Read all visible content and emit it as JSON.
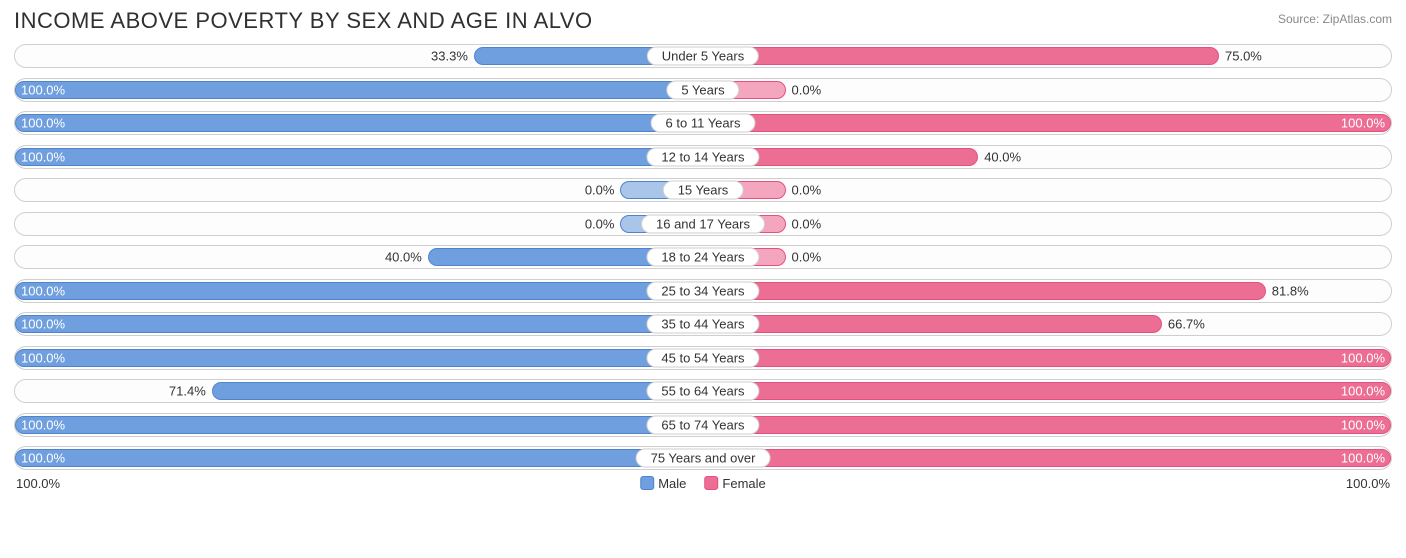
{
  "title": "INCOME ABOVE POVERTY BY SEX AND AGE IN ALVO",
  "source": "Source: ZipAtlas.com",
  "colors": {
    "male_fill": "#6f9fde",
    "male_border": "#4f84cc",
    "male_fill_light": "#a9c5ea",
    "female_fill": "#ec6e95",
    "female_border": "#e4507f",
    "female_fill_light": "#f4a6bf",
    "row_border": "#cfcfcf",
    "text": "#333333"
  },
  "min_bar_pct": 12,
  "rows": [
    {
      "age": "Under 5 Years",
      "male": 33.3,
      "male_label": "33.3%",
      "female": 75.0,
      "female_label": "75.0%"
    },
    {
      "age": "5 Years",
      "male": 100.0,
      "male_label": "100.0%",
      "female": 0.0,
      "female_label": "0.0%"
    },
    {
      "age": "6 to 11 Years",
      "male": 100.0,
      "male_label": "100.0%",
      "female": 100.0,
      "female_label": "100.0%"
    },
    {
      "age": "12 to 14 Years",
      "male": 100.0,
      "male_label": "100.0%",
      "female": 40.0,
      "female_label": "40.0%"
    },
    {
      "age": "15 Years",
      "male": 0.0,
      "male_label": "0.0%",
      "female": 0.0,
      "female_label": "0.0%"
    },
    {
      "age": "16 and 17 Years",
      "male": 0.0,
      "male_label": "0.0%",
      "female": 0.0,
      "female_label": "0.0%"
    },
    {
      "age": "18 to 24 Years",
      "male": 40.0,
      "male_label": "40.0%",
      "female": 0.0,
      "female_label": "0.0%"
    },
    {
      "age": "25 to 34 Years",
      "male": 100.0,
      "male_label": "100.0%",
      "female": 81.8,
      "female_label": "81.8%"
    },
    {
      "age": "35 to 44 Years",
      "male": 100.0,
      "male_label": "100.0%",
      "female": 66.7,
      "female_label": "66.7%"
    },
    {
      "age": "45 to 54 Years",
      "male": 100.0,
      "male_label": "100.0%",
      "female": 100.0,
      "female_label": "100.0%"
    },
    {
      "age": "55 to 64 Years",
      "male": 71.4,
      "male_label": "71.4%",
      "female": 100.0,
      "female_label": "100.0%"
    },
    {
      "age": "65 to 74 Years",
      "male": 100.0,
      "male_label": "100.0%",
      "female": 100.0,
      "female_label": "100.0%"
    },
    {
      "age": "75 Years and over",
      "male": 100.0,
      "male_label": "100.0%",
      "female": 100.0,
      "female_label": "100.0%"
    }
  ],
  "axis": {
    "left": "100.0%",
    "right": "100.0%"
  },
  "legend": {
    "male": "Male",
    "female": "Female"
  }
}
